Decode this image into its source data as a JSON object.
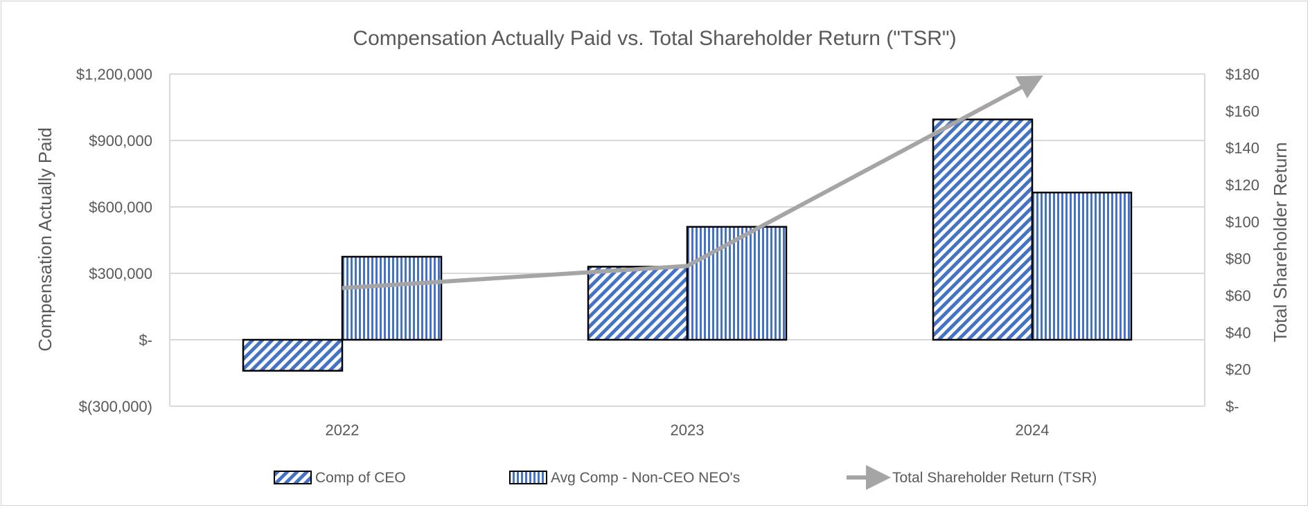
{
  "chart_data": {
    "type": "bar",
    "title": "Compensation Actually Paid vs. Total Shareholder Return (\"TSR\")",
    "categories": [
      "2022",
      "2023",
      "2024"
    ],
    "y_left": {
      "label": "Compensation Actually Paid",
      "range": [
        -300000,
        1200000
      ],
      "ticks": [
        -300000,
        0,
        300000,
        600000,
        900000,
        1200000
      ],
      "tick_labels": [
        "$(300,000)",
        "$-",
        "$300,000",
        "$600,000",
        "$900,000",
        "$1,200,000"
      ]
    },
    "y_right": {
      "label": "Total Shareholder Return",
      "range": [
        0,
        180
      ],
      "ticks": [
        0,
        20,
        40,
        60,
        80,
        100,
        120,
        140,
        160,
        180
      ],
      "tick_labels": [
        "$-",
        "$20",
        "$40",
        "$60",
        "$80",
        "$100",
        "$120",
        "$140",
        "$160",
        "$180"
      ]
    },
    "series": [
      {
        "name": "Comp of CEO",
        "type": "bar",
        "axis": "left",
        "pattern": "diagonal",
        "values": [
          -140000,
          330000,
          995000
        ]
      },
      {
        "name": "Avg Comp - Non-CEO NEO's",
        "type": "bar",
        "axis": "left",
        "pattern": "vertical",
        "values": [
          375000,
          510000,
          665000
        ]
      },
      {
        "name": "Total Shareholder Return (TSR)",
        "type": "line",
        "axis": "right",
        "values": [
          64,
          76,
          176
        ]
      }
    ],
    "legend_position": "bottom",
    "grid": true,
    "colors": {
      "bar_pattern": "#4472c4",
      "bar_border": "#000000",
      "line": "#a5a5a5",
      "grid": "#d9d9d9",
      "text": "#595959"
    }
  }
}
